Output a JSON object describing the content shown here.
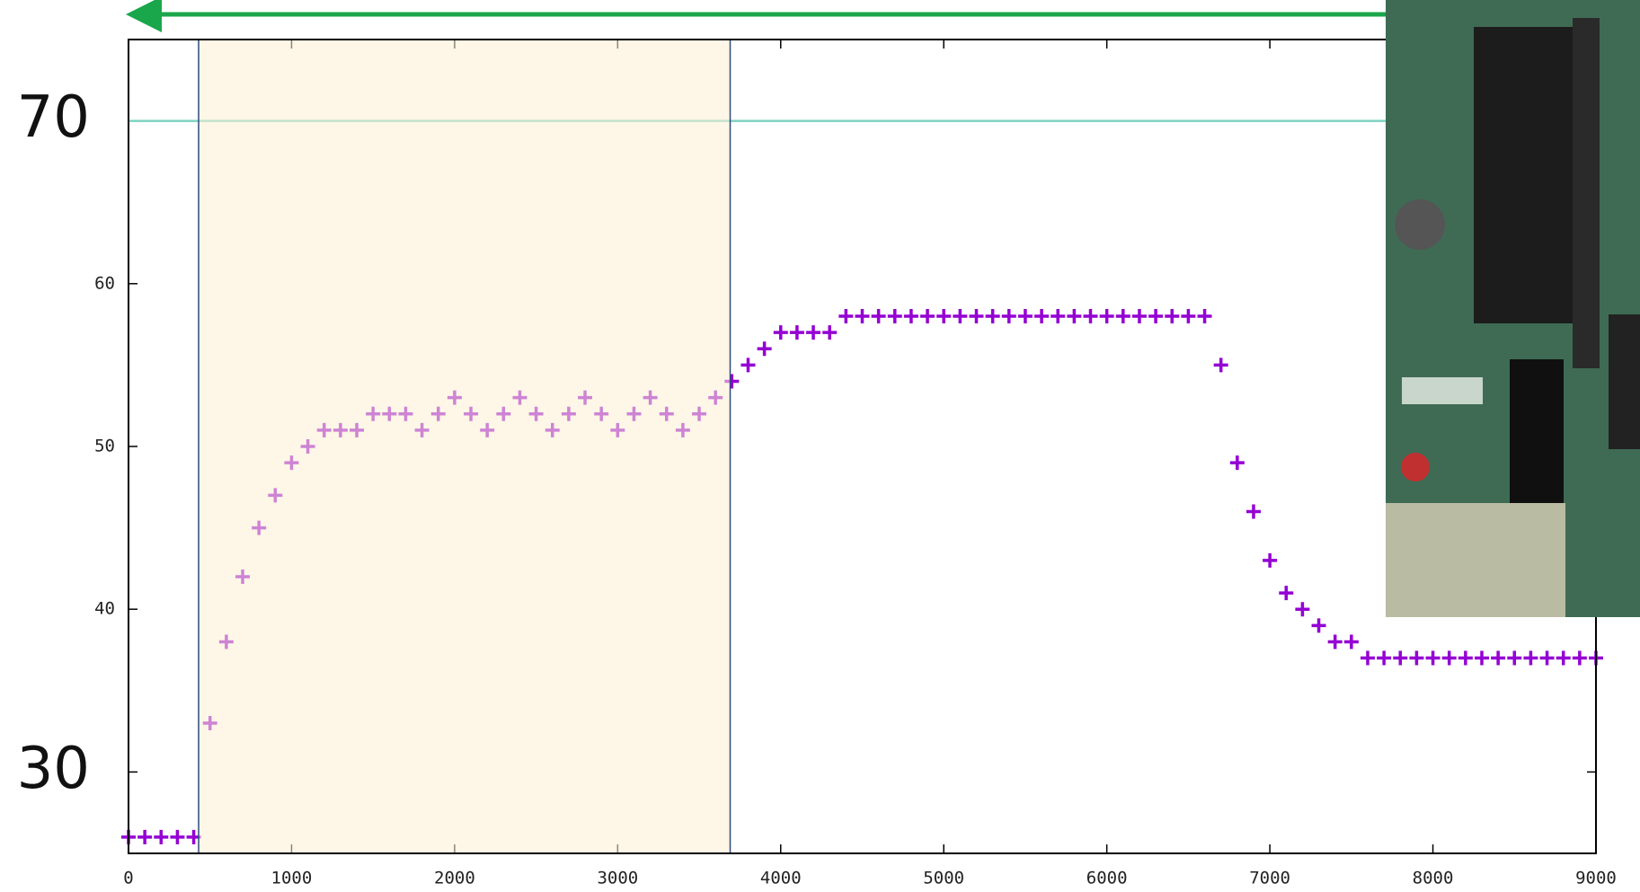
{
  "chart_data": {
    "type": "scatter",
    "marker": "+",
    "color": "#9400d3",
    "x": [
      0,
      100,
      200,
      300,
      400,
      500,
      600,
      700,
      800,
      900,
      1000,
      1100,
      1200,
      1300,
      1400,
      1500,
      1600,
      1700,
      1800,
      1900,
      2000,
      2100,
      2200,
      2300,
      2400,
      2500,
      2600,
      2700,
      2800,
      2900,
      3000,
      3100,
      3200,
      3300,
      3400,
      3500,
      3600,
      3700,
      3800,
      3900,
      4000,
      4100,
      4200,
      4300,
      4400,
      4500,
      4600,
      4700,
      4800,
      4900,
      5000,
      5100,
      5200,
      5300,
      5400,
      5500,
      5600,
      5700,
      5800,
      5900,
      6000,
      6100,
      6200,
      6300,
      6400,
      6500,
      6600,
      6700,
      6800,
      6900,
      7000,
      7100,
      7200,
      7300,
      7400,
      7500,
      7600,
      7700,
      7800,
      7900,
      8000,
      8100,
      8200,
      8300,
      8400,
      8500,
      8600,
      8700,
      8800,
      8900,
      9000
    ],
    "values": [
      26,
      26,
      26,
      26,
      26,
      33,
      38,
      42,
      45,
      47,
      49,
      50,
      51,
      51,
      51,
      52,
      52,
      52,
      51,
      52,
      53,
      52,
      51,
      52,
      53,
      52,
      51,
      52,
      53,
      52,
      51,
      52,
      53,
      52,
      51,
      52,
      53,
      54,
      55,
      56,
      57,
      57,
      57,
      57,
      58,
      58,
      58,
      58,
      58,
      58,
      58,
      58,
      58,
      58,
      58,
      58,
      58,
      58,
      58,
      58,
      58,
      58,
      58,
      58,
      58,
      58,
      58,
      55,
      49,
      46,
      43,
      41,
      40,
      39,
      38,
      38,
      37,
      37,
      37,
      37,
      37,
      37,
      37,
      37,
      37,
      37,
      37,
      37,
      37,
      37,
      37
    ],
    "xlim": [
      0,
      9000
    ],
    "xticks": [
      0,
      1000,
      2000,
      3000,
      4000,
      5000,
      6000,
      7000,
      8000,
      9000
    ],
    "ylim": [
      25,
      75
    ],
    "yticks": [
      30,
      40,
      50,
      60,
      70
    ],
    "large_yticks": [
      30,
      70
    ],
    "reference_line": 70,
    "reference_color": "#7fd3c0",
    "shaded_region": [
      430,
      3690
    ],
    "shaded_color": "#fdf0d5"
  }
}
